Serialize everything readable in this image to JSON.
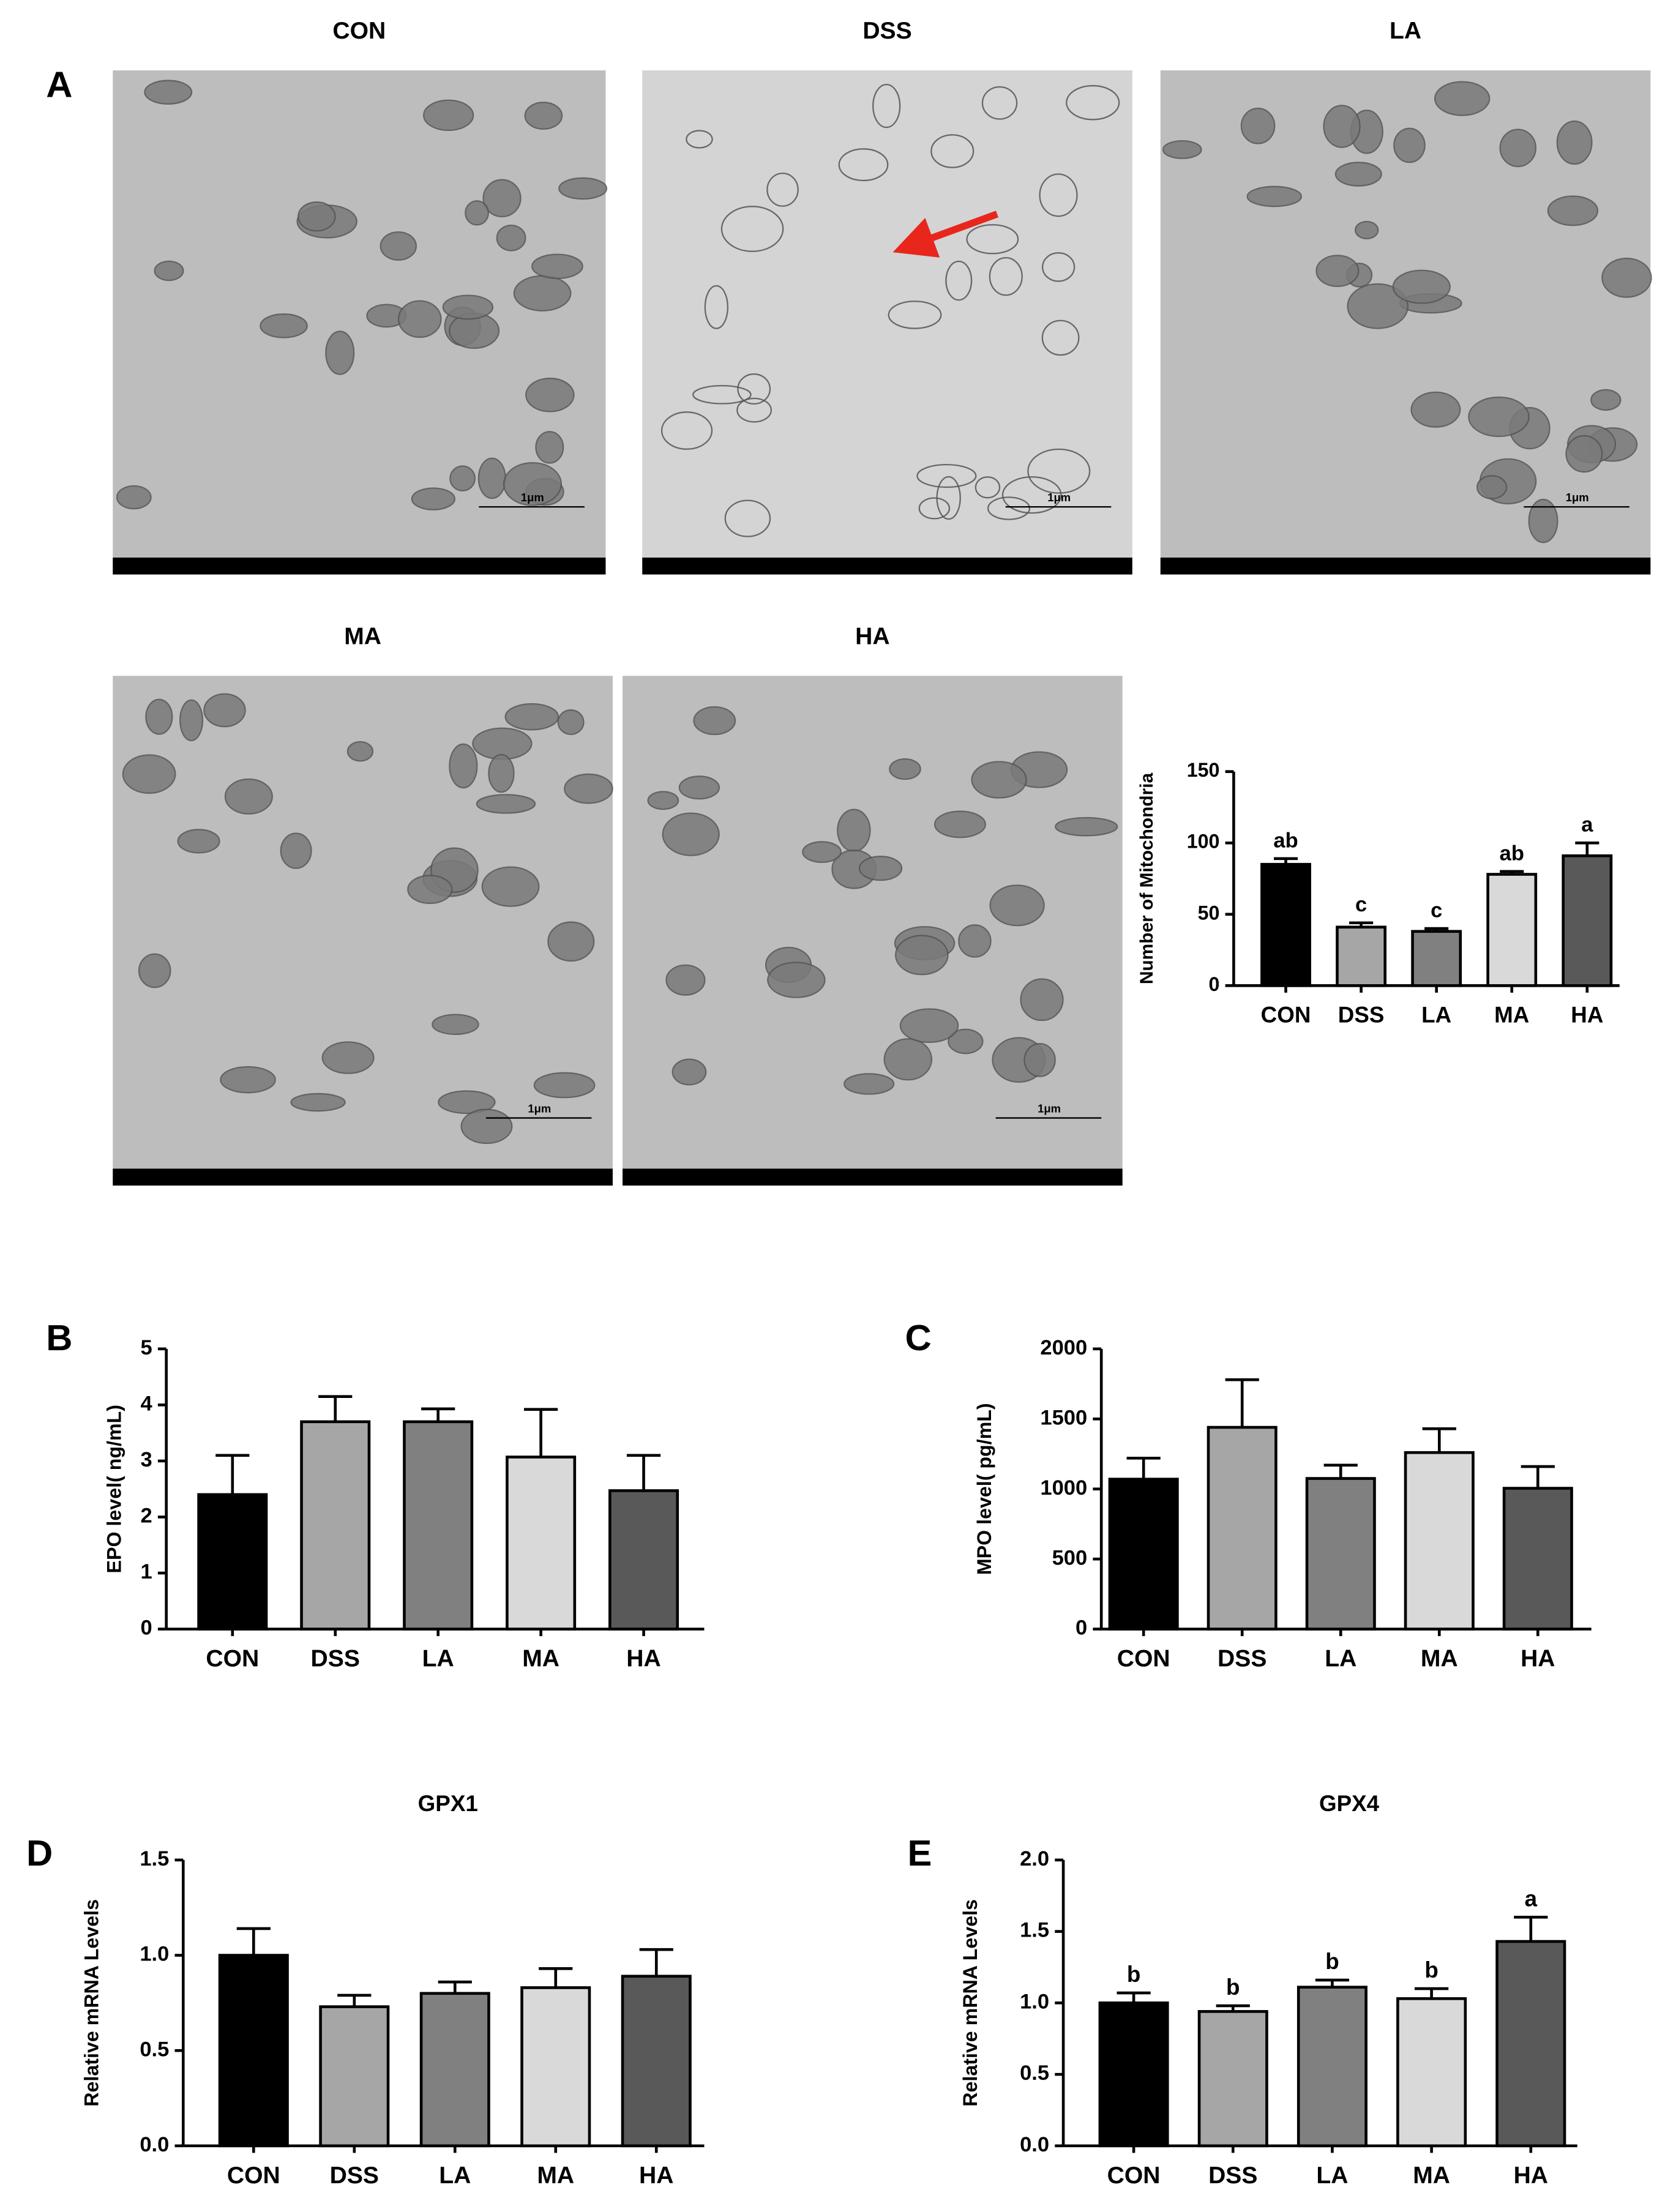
{
  "panel_a": {
    "letter": "A",
    "scale_bar": "1μm",
    "images": [
      "CON",
      "DSS",
      "LA",
      "MA",
      "HA"
    ]
  },
  "chart_data": [
    {
      "type": "bar",
      "ylabel": "Number of Mitochondria",
      "categories": [
        "CON",
        "DSS",
        "LA",
        "MA",
        "HA"
      ],
      "values": [
        85,
        41,
        38,
        78,
        91
      ],
      "errors": [
        4,
        3,
        2,
        2,
        9
      ],
      "annotations": [
        "ab",
        "c",
        "c",
        "ab",
        "a"
      ],
      "colors": [
        "#000000",
        "#a6a6a6",
        "#808080",
        "#d9d9d9",
        "#595959"
      ],
      "ylim": [
        0,
        150
      ],
      "yticks": [
        0,
        50,
        100,
        150
      ]
    },
    {
      "type": "bar",
      "panel_label": "B",
      "ylabel": "EPO level( ng/mL)",
      "categories": [
        "CON",
        "DSS",
        "LA",
        "MA",
        "HA"
      ],
      "values": [
        2.4,
        3.7,
        3.7,
        3.07,
        2.47
      ],
      "errors": [
        0.7,
        0.45,
        0.23,
        0.85,
        0.63
      ],
      "colors": [
        "#000000",
        "#a6a6a6",
        "#808080",
        "#d9d9d9",
        "#595959"
      ],
      "ylim": [
        0,
        5
      ],
      "yticks": [
        0,
        1,
        2,
        3,
        4,
        5
      ]
    },
    {
      "type": "bar",
      "panel_label": "C",
      "ylabel": "MPO level( pg/mL)",
      "categories": [
        "CON",
        "DSS",
        "LA",
        "MA",
        "HA"
      ],
      "values": [
        1070,
        1440,
        1075,
        1260,
        1005
      ],
      "errors": [
        150,
        340,
        95,
        170,
        155
      ],
      "colors": [
        "#000000",
        "#a6a6a6",
        "#808080",
        "#d9d9d9",
        "#595959"
      ],
      "ylim": [
        0,
        2000
      ],
      "yticks": [
        0,
        500,
        1000,
        1500,
        2000
      ]
    },
    {
      "type": "bar",
      "panel_label": "D",
      "title": "GPX1",
      "ylabel": "Relative mRNA Levels",
      "categories": [
        "CON",
        "DSS",
        "LA",
        "MA",
        "HA"
      ],
      "values": [
        1.0,
        0.73,
        0.8,
        0.83,
        0.89
      ],
      "errors": [
        0.14,
        0.06,
        0.06,
        0.1,
        0.14
      ],
      "colors": [
        "#000000",
        "#a6a6a6",
        "#808080",
        "#d9d9d9",
        "#595959"
      ],
      "ylim": [
        0,
        1.5
      ],
      "yticks": [
        {
          "value": 0,
          "label": "0.0"
        },
        0.5,
        {
          "value": 1,
          "label": "1.0"
        },
        1.5
      ]
    },
    {
      "type": "bar",
      "panel_label": "E",
      "title": "GPX4",
      "ylabel": "Relative mRNA Levels",
      "categories": [
        "CON",
        "DSS",
        "LA",
        "MA",
        "HA"
      ],
      "values": [
        1.0,
        0.94,
        1.11,
        1.03,
        1.43
      ],
      "errors": [
        0.07,
        0.04,
        0.05,
        0.07,
        0.17
      ],
      "annotations": [
        "b",
        "b",
        "b",
        "b",
        "a"
      ],
      "colors": [
        "#000000",
        "#a6a6a6",
        "#808080",
        "#d9d9d9",
        "#595959"
      ],
      "ylim": [
        0,
        2
      ],
      "yticks": [
        {
          "value": 0,
          "label": "0.0"
        },
        0.5,
        {
          "value": 1,
          "label": "1.0"
        },
        1.5,
        {
          "value": 2,
          "label": "2.0"
        }
      ]
    }
  ]
}
